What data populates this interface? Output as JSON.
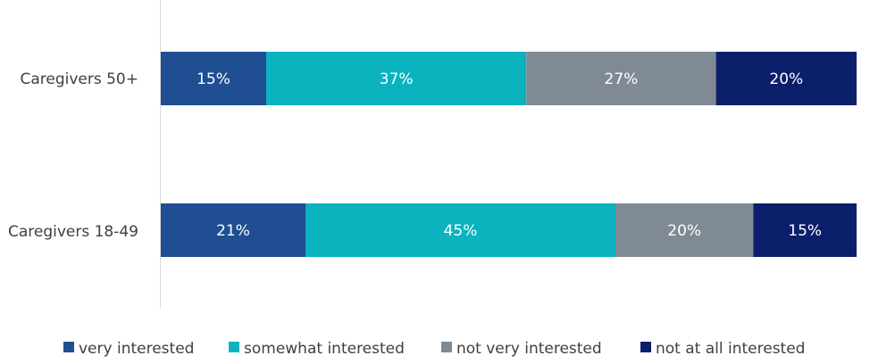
{
  "chart_data": {
    "type": "bar",
    "orientation": "horizontal",
    "stacked": true,
    "percent_stacked": true,
    "categories": [
      "Caregivers 50+",
      "Caregivers 18-49"
    ],
    "series": [
      {
        "name": "very interested",
        "values": [
          15,
          21
        ],
        "labels": [
          "15%",
          "21%"
        ],
        "color": "#1f4e93"
      },
      {
        "name": "somewhat interested",
        "values": [
          37,
          45
        ],
        "labels": [
          "37%",
          "45%"
        ],
        "color": "#0bb3bf"
      },
      {
        "name": "not very interested",
        "values": [
          27,
          20
        ],
        "labels": [
          "27%",
          "20%"
        ],
        "color": "#7f8a94"
      },
      {
        "name": "not at all interested",
        "values": [
          20,
          15
        ],
        "labels": [
          "20%",
          "15%"
        ],
        "color": "#0b1f6b"
      }
    ],
    "legend_position": "bottom",
    "grid": false
  }
}
